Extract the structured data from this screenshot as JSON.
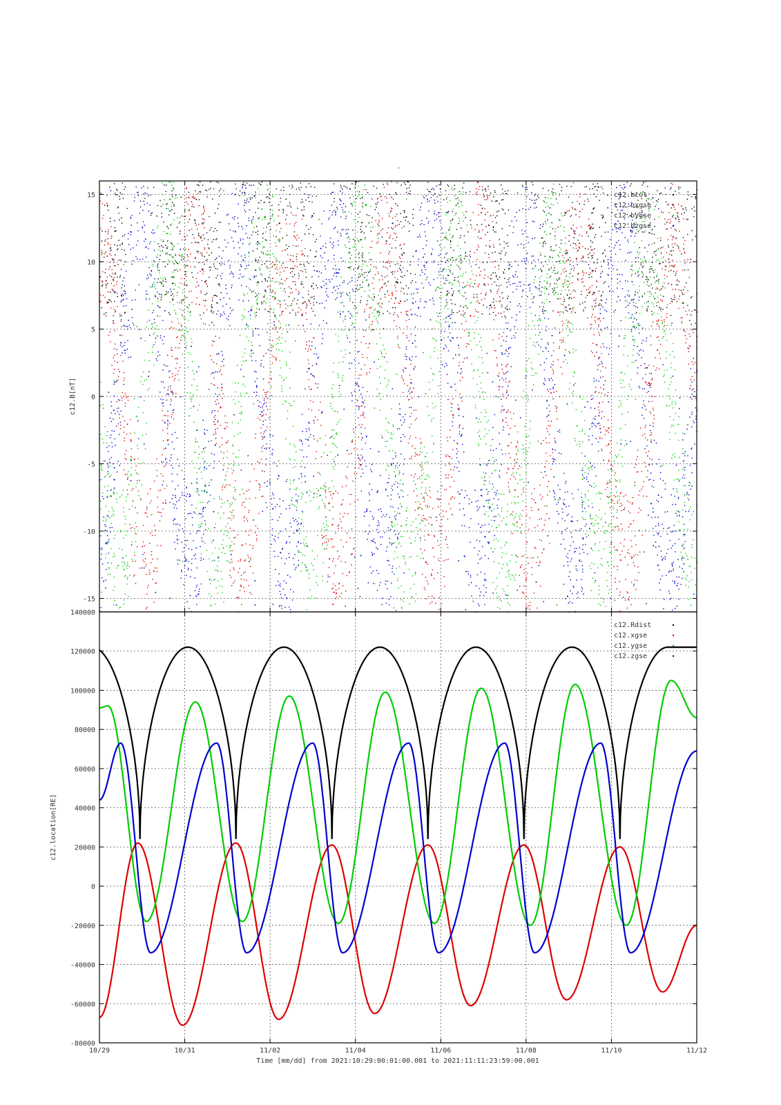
{
  "chart_data": [
    {
      "type": "scatter",
      "title": "-",
      "ylabel": "c12.B[nT]",
      "ylim": [
        -16,
        16
      ],
      "yticks": [
        15,
        10,
        5,
        0,
        -5,
        -10,
        -15
      ],
      "x_range": [
        "10/29",
        "11/12"
      ],
      "grid": true,
      "legend_position": "top-right",
      "series": [
        {
          "name": "c12.btot",
          "color": "#000000",
          "values": "dense per-minute magnetic field magnitude, mostly 5 to 16 nT"
        },
        {
          "name": "c12.bxgse",
          "color": "#dd0000",
          "values": "dense per-minute Bx component, scattered between -16 and 16 nT"
        },
        {
          "name": "c12.bygse",
          "color": "#00cc00",
          "values": "dense per-minute By component, scattered between -16 and 16 nT"
        },
        {
          "name": "c12.bzgse",
          "color": "#0000cc",
          "values": "dense per-minute Bz component, scattered between -16 and 16 nT"
        }
      ]
    },
    {
      "type": "line",
      "ylabel": "c12.location[RE]",
      "ylim": [
        -80000,
        140000
      ],
      "yticks": [
        140000,
        120000,
        100000,
        80000,
        60000,
        40000,
        20000,
        0,
        -20000,
        -40000,
        -60000,
        -80000
      ],
      "xlabel": "Time [mm/dd]  from 2021:10:29:00:01:00.001  to  2021:11:11:23:59:00.001",
      "xticks": [
        "10/29",
        "10/31",
        "11/02",
        "11/04",
        "11/06",
        "11/08",
        "11/10",
        "11/12"
      ],
      "x_range_days": [
        0,
        14
      ],
      "grid": true,
      "legend_position": "top-right",
      "orbit_period_days": 2.25,
      "series": [
        {
          "name": "c12.Rdist",
          "color": "#000000",
          "perigee_days": [
            0.95,
            3.2,
            5.45,
            7.7,
            9.95,
            12.2
          ],
          "min": 24000,
          "max": 122000
        },
        {
          "name": "c12.xgse",
          "color": "#dd0000",
          "extrema": [
            [
              0,
              -67000
            ],
            [
              0.9,
              22000
            ],
            [
              1.95,
              -71000
            ],
            [
              3.2,
              22000
            ],
            [
              4.2,
              -68000
            ],
            [
              5.45,
              21000
            ],
            [
              6.45,
              -65000
            ],
            [
              7.7,
              21000
            ],
            [
              8.7,
              -61000
            ],
            [
              9.95,
              21000
            ],
            [
              10.95,
              -58000
            ],
            [
              12.2,
              20000
            ],
            [
              13.2,
              -54000
            ],
            [
              14,
              -20000
            ]
          ]
        },
        {
          "name": "c12.ygse",
          "color": "#00cc00",
          "extrema": [
            [
              0,
              91000
            ],
            [
              0.2,
              92000
            ],
            [
              1.1,
              -18000
            ],
            [
              2.25,
              94000
            ],
            [
              3.35,
              -18000
            ],
            [
              4.45,
              97000
            ],
            [
              5.6,
              -19000
            ],
            [
              6.7,
              99000
            ],
            [
              7.85,
              -19000
            ],
            [
              8.95,
              101000
            ],
            [
              10.1,
              -20000
            ],
            [
              11.15,
              103000
            ],
            [
              12.35,
              -20000
            ],
            [
              13.4,
              105000
            ],
            [
              14,
              86000
            ]
          ]
        },
        {
          "name": "c12.zgse",
          "color": "#0000cc",
          "extrema": [
            [
              0,
              44000
            ],
            [
              0.5,
              73000
            ],
            [
              1.2,
              -34000
            ],
            [
              2.75,
              73000
            ],
            [
              3.45,
              -34000
            ],
            [
              5.0,
              73000
            ],
            [
              5.7,
              -34000
            ],
            [
              7.25,
              73000
            ],
            [
              7.95,
              -34000
            ],
            [
              9.5,
              73000
            ],
            [
              10.2,
              -34000
            ],
            [
              11.75,
              73000
            ],
            [
              12.45,
              -34000
            ],
            [
              14,
              69000
            ]
          ]
        }
      ]
    }
  ]
}
